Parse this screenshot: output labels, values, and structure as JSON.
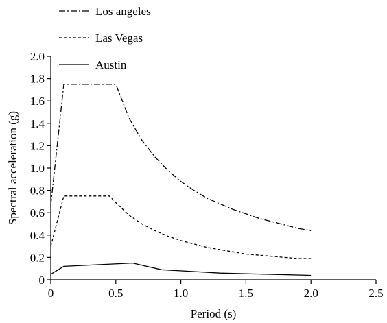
{
  "chart_data": {
    "type": "line",
    "title": "",
    "xlabel": "Period (s)",
    "ylabel": "Spectral acceleration (g)",
    "xlim": [
      0,
      2.5
    ],
    "ylim": [
      0,
      2.0
    ],
    "x_ticks": [
      "0",
      "0.5",
      "1.0",
      "1.5",
      "2.0",
      "2.5"
    ],
    "y_ticks": [
      "0",
      "0.2",
      "0.4",
      "0.6",
      "0.8",
      "1.0",
      "1.2",
      "1.4",
      "1.6",
      "1.8",
      "2.0"
    ],
    "grid": false,
    "legend_position": "top-left",
    "series": [
      {
        "name": "Los angeles",
        "style": "dash-dot",
        "color": "#000000",
        "x": [
          0,
          0.1,
          0.5,
          0.55,
          0.6,
          0.7,
          0.8,
          0.9,
          1.0,
          1.1,
          1.2,
          1.3,
          1.4,
          1.5,
          1.6,
          1.7,
          1.8,
          1.9,
          2.0
        ],
        "y": [
          0.67,
          1.75,
          1.75,
          1.6,
          1.45,
          1.25,
          1.1,
          0.98,
          0.88,
          0.8,
          0.73,
          0.68,
          0.63,
          0.59,
          0.55,
          0.52,
          0.49,
          0.46,
          0.44
        ]
      },
      {
        "name": "Las Vegas",
        "style": "dashed",
        "color": "#000000",
        "x": [
          0,
          0.1,
          0.45,
          0.5,
          0.6,
          0.7,
          0.8,
          0.9,
          1.0,
          1.1,
          1.2,
          1.3,
          1.4,
          1.5,
          1.6,
          1.7,
          1.8,
          1.9,
          2.0
        ],
        "y": [
          0.3,
          0.75,
          0.75,
          0.69,
          0.58,
          0.5,
          0.44,
          0.39,
          0.35,
          0.32,
          0.29,
          0.27,
          0.25,
          0.23,
          0.22,
          0.21,
          0.2,
          0.19,
          0.19
        ]
      },
      {
        "name": "Austin",
        "style": "solid",
        "color": "#000000",
        "x": [
          0,
          0.1,
          0.63,
          0.85,
          1.3,
          2.0
        ],
        "y": [
          0.05,
          0.12,
          0.15,
          0.09,
          0.06,
          0.04
        ]
      }
    ]
  }
}
